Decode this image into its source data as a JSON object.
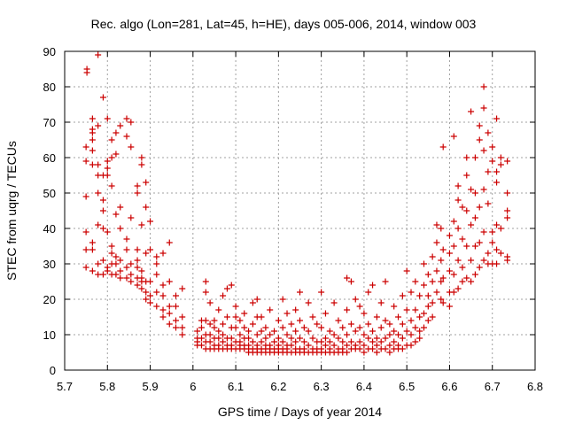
{
  "chart_data": {
    "type": "scatter",
    "title": "Rec. algo (Lon=281, Lat=45, h=HE), days 005-006, 2014, window 003",
    "xlabel": "GPS time / Days of year 2014",
    "ylabel": "STEC from uqrg / TECUs",
    "xlim": [
      5.7,
      6.8
    ],
    "ylim": [
      0,
      90
    ],
    "xticks": [
      "5.7",
      "5.8",
      "5.9",
      "6",
      "6.1",
      "6.2",
      "6.3",
      "6.4",
      "6.5",
      "6.6",
      "6.7",
      "6.8"
    ],
    "yticks": [
      "0",
      "10",
      "20",
      "30",
      "40",
      "50",
      "60",
      "70",
      "80",
      "90"
    ],
    "grid": true,
    "marker": "plus",
    "color": "#cc0000",
    "points": [
      [
        5.752,
        85
      ],
      [
        5.752,
        84
      ],
      [
        5.75,
        63
      ],
      [
        5.75,
        59
      ],
      [
        5.75,
        49
      ],
      [
        5.75,
        39
      ],
      [
        5.75,
        34
      ],
      [
        5.75,
        29
      ],
      [
        5.765,
        71
      ],
      [
        5.765,
        68
      ],
      [
        5.765,
        67
      ],
      [
        5.765,
        65
      ],
      [
        5.765,
        62
      ],
      [
        5.765,
        58
      ],
      [
        5.765,
        36
      ],
      [
        5.765,
        34
      ],
      [
        5.765,
        28
      ],
      [
        5.778,
        89
      ],
      [
        5.778,
        69
      ],
      [
        5.778,
        58
      ],
      [
        5.778,
        55
      ],
      [
        5.778,
        50
      ],
      [
        5.778,
        41
      ],
      [
        5.778,
        30
      ],
      [
        5.778,
        27
      ],
      [
        5.79,
        77
      ],
      [
        5.79,
        55
      ],
      [
        5.79,
        48
      ],
      [
        5.79,
        45
      ],
      [
        5.79,
        40
      ],
      [
        5.79,
        31
      ],
      [
        5.79,
        27
      ],
      [
        5.8,
        71
      ],
      [
        5.8,
        59
      ],
      [
        5.8,
        57
      ],
      [
        5.8,
        55
      ],
      [
        5.8,
        39
      ],
      [
        5.8,
        29
      ],
      [
        5.8,
        28
      ],
      [
        5.81,
        65
      ],
      [
        5.81,
        60
      ],
      [
        5.81,
        52
      ],
      [
        5.81,
        35
      ],
      [
        5.81,
        33
      ],
      [
        5.81,
        30
      ],
      [
        5.81,
        27
      ],
      [
        5.82,
        67
      ],
      [
        5.82,
        61
      ],
      [
        5.82,
        44
      ],
      [
        5.82,
        32
      ],
      [
        5.82,
        30
      ],
      [
        5.82,
        27
      ],
      [
        5.83,
        69
      ],
      [
        5.83,
        46
      ],
      [
        5.83,
        40
      ],
      [
        5.83,
        31
      ],
      [
        5.83,
        28
      ],
      [
        5.83,
        26
      ],
      [
        5.845,
        71
      ],
      [
        5.845,
        66
      ],
      [
        5.845,
        37
      ],
      [
        5.845,
        34
      ],
      [
        5.845,
        29
      ],
      [
        5.845,
        26
      ],
      [
        5.855,
        70
      ],
      [
        5.855,
        63
      ],
      [
        5.855,
        43
      ],
      [
        5.855,
        30
      ],
      [
        5.855,
        27
      ],
      [
        5.855,
        25
      ],
      [
        5.87,
        52
      ],
      [
        5.87,
        50
      ],
      [
        5.87,
        34
      ],
      [
        5.87,
        31
      ],
      [
        5.87,
        29
      ],
      [
        5.87,
        26
      ],
      [
        5.87,
        24
      ],
      [
        5.88,
        60
      ],
      [
        5.88,
        58
      ],
      [
        5.88,
        41
      ],
      [
        5.88,
        28
      ],
      [
        5.88,
        26
      ],
      [
        5.88,
        25
      ],
      [
        5.88,
        23
      ],
      [
        5.89,
        53
      ],
      [
        5.89,
        46
      ],
      [
        5.89,
        33
      ],
      [
        5.89,
        25
      ],
      [
        5.89,
        22
      ],
      [
        5.89,
        20
      ],
      [
        5.9,
        42
      ],
      [
        5.9,
        34
      ],
      [
        5.9,
        25
      ],
      [
        5.9,
        21
      ],
      [
        5.9,
        19
      ],
      [
        5.915,
        32
      ],
      [
        5.915,
        30
      ],
      [
        5.915,
        27
      ],
      [
        5.915,
        22
      ],
      [
        5.915,
        18
      ],
      [
        5.93,
        33
      ],
      [
        5.93,
        24
      ],
      [
        5.93,
        21
      ],
      [
        5.93,
        17
      ],
      [
        5.93,
        15
      ],
      [
        5.945,
        36
      ],
      [
        5.945,
        25
      ],
      [
        5.945,
        18
      ],
      [
        5.945,
        16
      ],
      [
        5.945,
        13
      ],
      [
        5.96,
        21
      ],
      [
        5.96,
        18
      ],
      [
        5.96,
        14
      ],
      [
        5.96,
        12
      ],
      [
        5.975,
        23
      ],
      [
        5.975,
        15
      ],
      [
        5.975,
        12
      ],
      [
        5.975,
        10
      ],
      [
        6.01,
        11
      ],
      [
        6.01,
        9
      ],
      [
        6.01,
        8
      ],
      [
        6.01,
        7
      ],
      [
        6.02,
        14
      ],
      [
        6.02,
        12
      ],
      [
        6.02,
        9
      ],
      [
        6.02,
        7
      ],
      [
        6.03,
        25
      ],
      [
        6.03,
        22
      ],
      [
        6.03,
        14
      ],
      [
        6.03,
        10
      ],
      [
        6.03,
        8
      ],
      [
        6.03,
        6
      ],
      [
        6.04,
        19
      ],
      [
        6.04,
        13
      ],
      [
        6.04,
        10
      ],
      [
        6.04,
        8
      ],
      [
        6.04,
        6
      ],
      [
        6.05,
        14
      ],
      [
        6.05,
        12
      ],
      [
        6.05,
        9
      ],
      [
        6.05,
        7
      ],
      [
        6.05,
        6
      ],
      [
        6.06,
        17
      ],
      [
        6.06,
        11
      ],
      [
        6.06,
        9
      ],
      [
        6.06,
        7
      ],
      [
        6.06,
        6
      ],
      [
        6.07,
        21
      ],
      [
        6.07,
        13
      ],
      [
        6.07,
        10
      ],
      [
        6.07,
        8
      ],
      [
        6.07,
        6
      ],
      [
        6.08,
        23
      ],
      [
        6.08,
        15
      ],
      [
        6.08,
        9
      ],
      [
        6.08,
        7
      ],
      [
        6.08,
        6
      ],
      [
        6.09,
        24
      ],
      [
        6.09,
        12
      ],
      [
        6.09,
        9
      ],
      [
        6.09,
        7
      ],
      [
        6.09,
        6
      ],
      [
        6.1,
        18
      ],
      [
        6.1,
        15
      ],
      [
        6.1,
        12
      ],
      [
        6.1,
        8
      ],
      [
        6.1,
        6
      ],
      [
        6.11,
        14
      ],
      [
        6.11,
        10
      ],
      [
        6.11,
        8
      ],
      [
        6.11,
        7
      ],
      [
        6.11,
        6
      ],
      [
        6.12,
        16
      ],
      [
        6.12,
        12
      ],
      [
        6.12,
        9
      ],
      [
        6.12,
        7
      ],
      [
        6.12,
        6
      ],
      [
        6.13,
        11
      ],
      [
        6.13,
        9
      ],
      [
        6.13,
        7
      ],
      [
        6.13,
        6
      ],
      [
        6.13,
        5
      ],
      [
        6.14,
        19
      ],
      [
        6.14,
        13
      ],
      [
        6.14,
        8
      ],
      [
        6.14,
        6
      ],
      [
        6.14,
        5
      ],
      [
        6.15,
        20
      ],
      [
        6.15,
        15
      ],
      [
        6.15,
        10
      ],
      [
        6.15,
        7
      ],
      [
        6.15,
        6
      ],
      [
        6.15,
        5
      ],
      [
        6.16,
        15
      ],
      [
        6.16,
        11
      ],
      [
        6.16,
        8
      ],
      [
        6.16,
        6
      ],
      [
        6.16,
        5
      ],
      [
        6.17,
        12
      ],
      [
        6.17,
        9
      ],
      [
        6.17,
        7
      ],
      [
        6.17,
        6
      ],
      [
        6.17,
        5
      ],
      [
        6.18,
        17
      ],
      [
        6.18,
        10
      ],
      [
        6.18,
        7
      ],
      [
        6.18,
        6
      ],
      [
        6.18,
        5
      ],
      [
        6.19,
        11
      ],
      [
        6.19,
        8
      ],
      [
        6.19,
        6
      ],
      [
        6.19,
        5
      ],
      [
        6.2,
        14
      ],
      [
        6.2,
        9
      ],
      [
        6.2,
        7
      ],
      [
        6.2,
        6
      ],
      [
        6.2,
        5
      ],
      [
        6.21,
        20
      ],
      [
        6.21,
        12
      ],
      [
        6.21,
        8
      ],
      [
        6.21,
        6
      ],
      [
        6.21,
        5
      ],
      [
        6.22,
        16
      ],
      [
        6.22,
        10
      ],
      [
        6.22,
        7
      ],
      [
        6.22,
        6
      ],
      [
        6.22,
        5
      ],
      [
        6.23,
        13
      ],
      [
        6.23,
        9
      ],
      [
        6.23,
        7
      ],
      [
        6.23,
        5
      ],
      [
        6.24,
        17
      ],
      [
        6.24,
        11
      ],
      [
        6.24,
        8
      ],
      [
        6.24,
        6
      ],
      [
        6.24,
        5
      ],
      [
        6.25,
        22
      ],
      [
        6.25,
        14
      ],
      [
        6.25,
        9
      ],
      [
        6.25,
        6
      ],
      [
        6.25,
        5
      ],
      [
        6.26,
        12
      ],
      [
        6.26,
        8
      ],
      [
        6.26,
        6
      ],
      [
        6.26,
        5
      ],
      [
        6.27,
        19
      ],
      [
        6.27,
        11
      ],
      [
        6.27,
        7
      ],
      [
        6.27,
        5
      ],
      [
        6.28,
        15
      ],
      [
        6.28,
        9
      ],
      [
        6.28,
        6
      ],
      [
        6.28,
        5
      ],
      [
        6.29,
        13
      ],
      [
        6.29,
        8
      ],
      [
        6.29,
        6
      ],
      [
        6.29,
        5
      ],
      [
        6.3,
        22
      ],
      [
        6.3,
        12
      ],
      [
        6.3,
        8
      ],
      [
        6.3,
        6
      ],
      [
        6.3,
        5
      ],
      [
        6.31,
        16
      ],
      [
        6.31,
        9
      ],
      [
        6.31,
        7
      ],
      [
        6.31,
        5
      ],
      [
        6.32,
        11
      ],
      [
        6.32,
        8
      ],
      [
        6.32,
        6
      ],
      [
        6.32,
        5
      ],
      [
        6.33,
        19
      ],
      [
        6.33,
        10
      ],
      [
        6.33,
        7
      ],
      [
        6.33,
        5
      ],
      [
        6.34,
        14
      ],
      [
        6.34,
        9
      ],
      [
        6.34,
        6
      ],
      [
        6.34,
        5
      ],
      [
        6.35,
        12
      ],
      [
        6.35,
        8
      ],
      [
        6.35,
        6
      ],
      [
        6.35,
        5
      ],
      [
        6.36,
        26
      ],
      [
        6.36,
        17
      ],
      [
        6.36,
        10
      ],
      [
        6.36,
        7
      ],
      [
        6.36,
        5
      ],
      [
        6.37,
        25
      ],
      [
        6.37,
        13
      ],
      [
        6.37,
        8
      ],
      [
        6.37,
        6
      ],
      [
        6.38,
        20
      ],
      [
        6.38,
        11
      ],
      [
        6.38,
        7
      ],
      [
        6.38,
        6
      ],
      [
        6.39,
        18
      ],
      [
        6.39,
        12
      ],
      [
        6.39,
        8
      ],
      [
        6.39,
        6
      ],
      [
        6.4,
        16
      ],
      [
        6.4,
        10
      ],
      [
        6.4,
        7
      ],
      [
        6.4,
        5
      ],
      [
        6.41,
        22
      ],
      [
        6.41,
        13
      ],
      [
        6.41,
        9
      ],
      [
        6.41,
        6
      ],
      [
        6.42,
        24
      ],
      [
        6.42,
        11
      ],
      [
        6.42,
        8
      ],
      [
        6.42,
        6
      ],
      [
        6.43,
        15
      ],
      [
        6.43,
        9
      ],
      [
        6.43,
        7
      ],
      [
        6.43,
        5
      ],
      [
        6.44,
        19
      ],
      [
        6.44,
        12
      ],
      [
        6.44,
        8
      ],
      [
        6.44,
        6
      ],
      [
        6.45,
        25
      ],
      [
        6.45,
        14
      ],
      [
        6.45,
        9
      ],
      [
        6.45,
        6
      ],
      [
        6.46,
        13
      ],
      [
        6.46,
        10
      ],
      [
        6.46,
        7
      ],
      [
        6.46,
        5
      ],
      [
        6.47,
        18
      ],
      [
        6.47,
        11
      ],
      [
        6.47,
        8
      ],
      [
        6.47,
        6
      ],
      [
        6.48,
        15
      ],
      [
        6.48,
        10
      ],
      [
        6.48,
        7
      ],
      [
        6.48,
        6
      ],
      [
        6.49,
        21
      ],
      [
        6.49,
        13
      ],
      [
        6.49,
        9
      ],
      [
        6.49,
        6
      ],
      [
        6.5,
        28
      ],
      [
        6.5,
        17
      ],
      [
        6.5,
        11
      ],
      [
        6.5,
        7
      ],
      [
        6.51,
        22
      ],
      [
        6.51,
        14
      ],
      [
        6.51,
        10
      ],
      [
        6.51,
        7
      ],
      [
        6.52,
        25
      ],
      [
        6.52,
        17
      ],
      [
        6.52,
        12
      ],
      [
        6.52,
        8
      ],
      [
        6.53,
        21
      ],
      [
        6.53,
        15
      ],
      [
        6.53,
        11
      ],
      [
        6.53,
        9
      ],
      [
        6.54,
        30
      ],
      [
        6.54,
        24
      ],
      [
        6.54,
        16
      ],
      [
        6.54,
        12
      ],
      [
        6.55,
        27
      ],
      [
        6.55,
        21
      ],
      [
        6.55,
        18
      ],
      [
        6.55,
        14
      ],
      [
        6.56,
        32
      ],
      [
        6.56,
        25
      ],
      [
        6.56,
        19
      ],
      [
        6.56,
        15
      ],
      [
        6.57,
        41
      ],
      [
        6.57,
        36
      ],
      [
        6.57,
        28
      ],
      [
        6.57,
        22
      ],
      [
        6.58,
        40
      ],
      [
        6.58,
        31
      ],
      [
        6.58,
        25
      ],
      [
        6.58,
        20
      ],
      [
        6.585,
        63
      ],
      [
        6.585,
        34
      ],
      [
        6.585,
        26
      ],
      [
        6.585,
        19
      ],
      [
        6.6,
        38
      ],
      [
        6.6,
        33
      ],
      [
        6.6,
        28
      ],
      [
        6.6,
        22
      ],
      [
        6.6,
        18
      ],
      [
        6.61,
        66
      ],
      [
        6.61,
        42
      ],
      [
        6.61,
        35
      ],
      [
        6.61,
        27
      ],
      [
        6.61,
        22
      ],
      [
        6.62,
        52
      ],
      [
        6.62,
        48
      ],
      [
        6.62,
        40
      ],
      [
        6.62,
        31
      ],
      [
        6.62,
        23
      ],
      [
        6.63,
        46
      ],
      [
        6.63,
        37
      ],
      [
        6.63,
        29
      ],
      [
        6.63,
        25
      ],
      [
        6.64,
        60
      ],
      [
        6.64,
        55
      ],
      [
        6.64,
        45
      ],
      [
        6.64,
        35
      ],
      [
        6.64,
        26
      ],
      [
        6.65,
        73
      ],
      [
        6.65,
        51
      ],
      [
        6.65,
        41
      ],
      [
        6.65,
        31
      ],
      [
        6.65,
        25
      ],
      [
        6.66,
        60
      ],
      [
        6.66,
        50
      ],
      [
        6.66,
        43
      ],
      [
        6.66,
        35
      ],
      [
        6.66,
        27
      ],
      [
        6.67,
        69
      ],
      [
        6.67,
        65
      ],
      [
        6.67,
        46
      ],
      [
        6.67,
        36
      ],
      [
        6.67,
        29
      ],
      [
        6.68,
        80
      ],
      [
        6.68,
        74
      ],
      [
        6.68,
        62
      ],
      [
        6.68,
        51
      ],
      [
        6.68,
        39
      ],
      [
        6.68,
        31
      ],
      [
        6.69,
        67
      ],
      [
        6.69,
        56
      ],
      [
        6.69,
        47
      ],
      [
        6.69,
        33
      ],
      [
        6.69,
        30
      ],
      [
        6.7,
        63
      ],
      [
        6.7,
        59
      ],
      [
        6.7,
        39
      ],
      [
        6.7,
        36
      ],
      [
        6.7,
        30
      ],
      [
        6.71,
        71
      ],
      [
        6.71,
        56
      ],
      [
        6.71,
        53
      ],
      [
        6.71,
        41
      ],
      [
        6.71,
        34
      ],
      [
        6.71,
        30
      ],
      [
        6.72,
        60
      ],
      [
        6.72,
        58
      ],
      [
        6.72,
        40
      ],
      [
        6.72,
        33
      ],
      [
        6.735,
        59
      ],
      [
        6.735,
        50
      ],
      [
        6.735,
        45
      ],
      [
        6.735,
        43
      ],
      [
        6.735,
        32
      ],
      [
        6.735,
        31
      ]
    ]
  }
}
